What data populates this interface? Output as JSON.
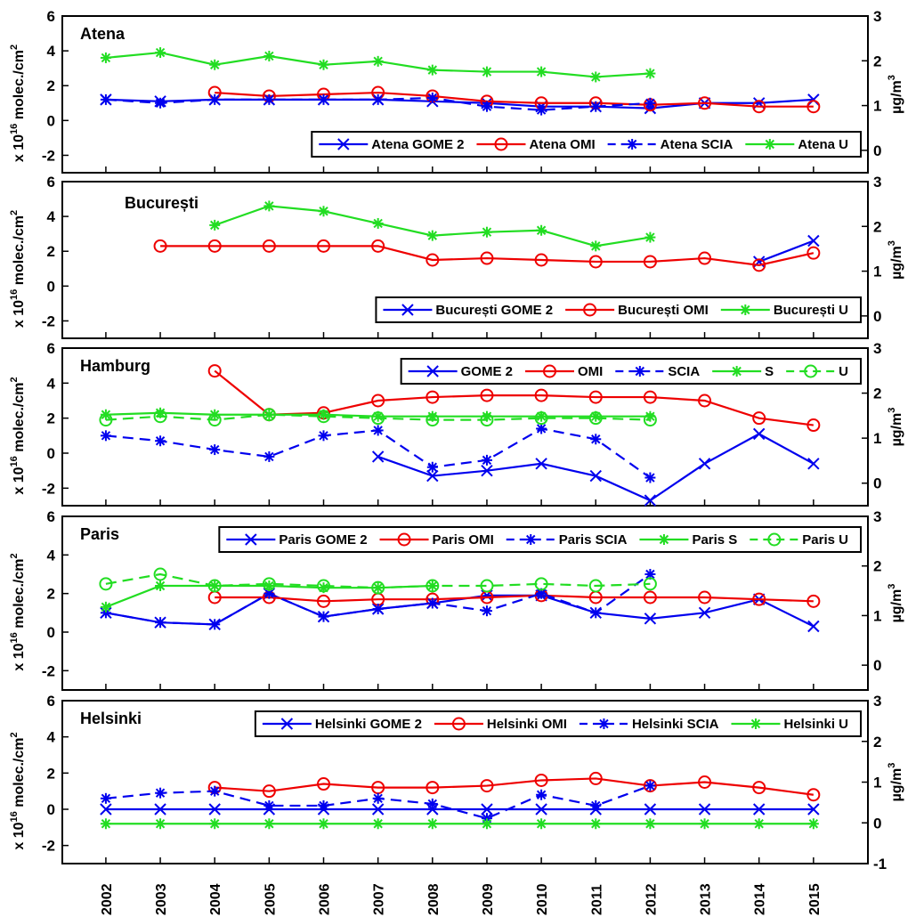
{
  "chart_data": {
    "type": "line",
    "x": [
      2002,
      2003,
      2004,
      2005,
      2006,
      2007,
      2008,
      2009,
      2010,
      2011,
      2012,
      2013,
      2014,
      2015
    ],
    "left_ylabel": "x 10 molec./cm",
    "left_ylabel_sup1": "16",
    "left_ylabel_sup2": "2",
    "right_ylabel": "µg/m",
    "right_ylabel_sup": "3",
    "colors": {
      "gome2": "#0000ee",
      "omi": "#ee0000",
      "scia": "#0000ee",
      "s": "#22dd22",
      "u": "#22dd22"
    },
    "panels": [
      {
        "title": "Atena",
        "ylim": [
          -3,
          6
        ],
        "yticks": [
          -2,
          0,
          2,
          4,
          6
        ],
        "rlim": [
          -0.5,
          3
        ],
        "rticks": [
          0,
          1,
          2,
          3
        ],
        "rticklabels": [
          "0",
          "1",
          "2",
          "3"
        ],
        "legend_pos": "lower-right",
        "series": [
          {
            "name": "Atena GOME 2",
            "kind": "gome2",
            "x": [
              2002,
              2003,
              2004,
              2005,
              2006,
              2007,
              2008,
              2009,
              2010,
              2011,
              2012,
              2013,
              2014,
              2015
            ],
            "values": [
              1.2,
              1.1,
              1.2,
              1.2,
              1.2,
              1.2,
              1.1,
              1.0,
              0.8,
              0.8,
              0.7,
              1.0,
              1.0,
              1.2
            ]
          },
          {
            "name": "Atena OMI",
            "kind": "omi",
            "x": [
              2004,
              2005,
              2006,
              2007,
              2008,
              2009,
              2010,
              2011,
              2012,
              2013,
              2014,
              2015
            ],
            "values": [
              1.6,
              1.4,
              1.5,
              1.6,
              1.4,
              1.1,
              1.0,
              1.0,
              0.9,
              1.0,
              0.8,
              0.8
            ]
          },
          {
            "name": "Atena SCIA",
            "kind": "scia",
            "x": [
              2002,
              2003,
              2004,
              2005,
              2006,
              2007,
              2008,
              2009,
              2010,
              2011,
              2012
            ],
            "values": [
              1.2,
              1.0,
              1.2,
              1.2,
              1.2,
              1.2,
              1.3,
              0.8,
              0.6,
              0.8,
              1.0
            ]
          },
          {
            "name": "Atena U",
            "kind": "u_solid",
            "x": [
              2002,
              2003,
              2004,
              2005,
              2006,
              2007,
              2008,
              2009,
              2010,
              2011,
              2012
            ],
            "values": [
              3.6,
              3.9,
              3.2,
              3.7,
              3.2,
              3.4,
              2.9,
              2.8,
              2.8,
              2.5,
              2.7
            ]
          }
        ]
      },
      {
        "title": "București",
        "ylim": [
          -3,
          6
        ],
        "yticks": [
          -2,
          0,
          2,
          4,
          6
        ],
        "rlim": [
          -0.5,
          3
        ],
        "rticks": [
          0,
          1,
          2,
          3
        ],
        "rticklabels": [
          "0",
          "1",
          "2",
          "3"
        ],
        "legend_pos": "lower-right",
        "series": [
          {
            "name": "București GOME 2",
            "kind": "gome2",
            "x": [
              2014,
              2015
            ],
            "values": [
              1.4,
              2.6
            ]
          },
          {
            "name": "București OMI",
            "kind": "omi",
            "x": [
              2003,
              2004,
              2005,
              2006,
              2007,
              2008,
              2009,
              2010,
              2011,
              2012,
              2013,
              2014,
              2015
            ],
            "values": [
              2.3,
              2.3,
              2.3,
              2.3,
              2.3,
              1.5,
              1.6,
              1.5,
              1.4,
              1.4,
              1.6,
              1.2,
              1.9
            ]
          },
          {
            "name": "București U",
            "kind": "u_solid",
            "x": [
              2004,
              2005,
              2006,
              2007,
              2008,
              2009,
              2010,
              2011,
              2012
            ],
            "values": [
              3.5,
              4.6,
              4.3,
              3.6,
              2.9,
              3.1,
              3.2,
              2.3,
              2.8
            ]
          }
        ]
      },
      {
        "title": "Hamburg",
        "ylim": [
          -3,
          6
        ],
        "yticks": [
          -2,
          0,
          2,
          4,
          6
        ],
        "rlim": [
          -0.5,
          3
        ],
        "rticks": [
          0,
          1,
          2,
          3
        ],
        "rticklabels": [
          "0",
          "1",
          "2",
          "3"
        ],
        "legend_pos": "top-right",
        "series": [
          {
            "name": "GOME 2",
            "kind": "gome2",
            "x": [
              2007,
              2008,
              2009,
              2010,
              2011,
              2012,
              2013,
              2014,
              2015
            ],
            "values": [
              -0.2,
              -1.3,
              -1.0,
              -0.6,
              -1.3,
              -2.7,
              -0.6,
              1.1,
              -0.6
            ]
          },
          {
            "name": "OMI",
            "kind": "omi",
            "x": [
              2004,
              2005,
              2006,
              2007,
              2008,
              2009,
              2010,
              2011,
              2012,
              2013,
              2014,
              2015
            ],
            "values": [
              4.7,
              2.2,
              2.3,
              3.0,
              3.2,
              3.3,
              3.3,
              3.2,
              3.2,
              3.0,
              2.0,
              1.6
            ]
          },
          {
            "name": "SCIA",
            "kind": "scia",
            "x": [
              2002,
              2003,
              2004,
              2005,
              2006,
              2007,
              2008,
              2009,
              2010,
              2011,
              2012
            ],
            "values": [
              1.0,
              0.7,
              0.2,
              -0.2,
              1.0,
              1.3,
              -0.8,
              -0.4,
              1.4,
              0.8,
              -1.4
            ]
          },
          {
            "name": "S",
            "kind": "s_solid",
            "x": [
              2002,
              2003,
              2004,
              2005,
              2006,
              2007,
              2008,
              2009,
              2010,
              2011,
              2012
            ],
            "values": [
              2.2,
              2.3,
              2.2,
              2.2,
              2.2,
              2.1,
              2.1,
              2.1,
              2.1,
              2.1,
              2.1
            ]
          },
          {
            "name": "U",
            "kind": "u_dashed",
            "x": [
              2002,
              2003,
              2004,
              2005,
              2006,
              2007,
              2008,
              2009,
              2010,
              2011,
              2012
            ],
            "values": [
              1.9,
              2.1,
              1.9,
              2.2,
              2.1,
              2.0,
              1.9,
              1.9,
              2.0,
              2.0,
              1.9
            ]
          }
        ]
      },
      {
        "title": "Paris",
        "ylim": [
          -3,
          6
        ],
        "yticks": [
          -2,
          0,
          2,
          4,
          6
        ],
        "rlim": [
          -0.5,
          3
        ],
        "rticks": [
          0,
          1,
          2,
          3
        ],
        "rticklabels": [
          "0",
          "1",
          "2",
          "3"
        ],
        "legend_pos": "top-right",
        "series": [
          {
            "name": "Paris GOME 2",
            "kind": "gome2",
            "x": [
              2002,
              2003,
              2004,
              2005,
              2006,
              2007,
              2008,
              2009,
              2010,
              2011,
              2012,
              2013,
              2014,
              2015
            ],
            "values": [
              1.0,
              0.5,
              0.4,
              2.0,
              0.8,
              1.2,
              1.5,
              1.9,
              1.9,
              1.0,
              0.7,
              1.0,
              1.7,
              0.3
            ]
          },
          {
            "name": "Paris OMI",
            "kind": "omi",
            "x": [
              2004,
              2005,
              2006,
              2007,
              2008,
              2009,
              2010,
              2011,
              2012,
              2013,
              2014,
              2015
            ],
            "values": [
              1.8,
              1.8,
              1.6,
              1.7,
              1.7,
              1.8,
              1.9,
              1.8,
              1.8,
              1.8,
              1.7,
              1.6
            ]
          },
          {
            "name": "Paris SCIA",
            "kind": "scia",
            "x": [
              2002,
              2003,
              2004,
              2005,
              2006,
              2007,
              2008,
              2009,
              2010,
              2011,
              2012
            ],
            "values": [
              1.0,
              0.5,
              0.4,
              2.0,
              0.8,
              1.2,
              1.5,
              1.1,
              2.0,
              1.0,
              3.0
            ]
          },
          {
            "name": "Paris S",
            "kind": "s_solid",
            "x": [
              2002,
              2003,
              2004,
              2005,
              2006,
              2007,
              2008
            ],
            "values": [
              1.3,
              2.4,
              2.4,
              2.4,
              2.3,
              2.3,
              2.4
            ]
          },
          {
            "name": "Paris U",
            "kind": "u_dashed",
            "x": [
              2002,
              2003,
              2004,
              2005,
              2006,
              2007,
              2008,
              2009,
              2010,
              2011,
              2012
            ],
            "values": [
              2.5,
              3.0,
              2.4,
              2.5,
              2.4,
              2.3,
              2.4,
              2.4,
              2.5,
              2.4,
              2.5
            ]
          }
        ]
      },
      {
        "title": "Helsinki",
        "ylim": [
          -3,
          6
        ],
        "yticks": [
          -2,
          0,
          2,
          4,
          6
        ],
        "rlim": [
          -1,
          3
        ],
        "rticks": [
          -1,
          0,
          1,
          2,
          3
        ],
        "rticklabels": [
          "-1",
          "0",
          "1",
          "2",
          "3"
        ],
        "legend_pos": "top-right",
        "series": [
          {
            "name": "Helsinki GOME 2",
            "kind": "gome2",
            "x": [
              2002,
              2003,
              2004,
              2005,
              2006,
              2007,
              2008,
              2009,
              2010,
              2011,
              2012,
              2013,
              2014,
              2015
            ],
            "values": [
              0,
              0,
              0,
              0,
              0,
              0,
              0,
              0,
              0,
              0,
              0,
              0,
              0,
              0
            ]
          },
          {
            "name": "Helsinki OMI",
            "kind": "omi",
            "x": [
              2004,
              2005,
              2006,
              2007,
              2008,
              2009,
              2010,
              2011,
              2012,
              2013,
              2014,
              2015
            ],
            "values": [
              1.2,
              1.0,
              1.4,
              1.2,
              1.2,
              1.3,
              1.6,
              1.7,
              1.3,
              1.5,
              1.2,
              0.8
            ]
          },
          {
            "name": "Helsinki SCIA",
            "kind": "scia",
            "x": [
              2002,
              2003,
              2004,
              2005,
              2006,
              2007,
              2008,
              2009,
              2010,
              2011,
              2012
            ],
            "values": [
              0.6,
              0.9,
              1.0,
              0.2,
              0.2,
              0.6,
              0.3,
              -0.5,
              0.8,
              0.2,
              1.3
            ]
          },
          {
            "name": "Helsinki U",
            "kind": "u_solid",
            "x": [
              2002,
              2003,
              2004,
              2005,
              2006,
              2007,
              2008,
              2009,
              2010,
              2011,
              2012,
              2013,
              2014,
              2015
            ],
            "values": [
              -0.8,
              -0.8,
              -0.8,
              -0.8,
              -0.8,
              -0.8,
              -0.8,
              -0.8,
              -0.8,
              -0.8,
              -0.8,
              -0.8,
              -0.8,
              -0.8
            ]
          }
        ]
      }
    ]
  }
}
